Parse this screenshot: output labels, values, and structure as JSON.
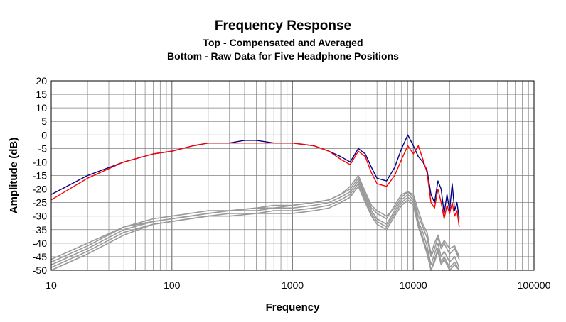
{
  "chart_data": {
    "type": "line",
    "title": "Frequency Response",
    "subtitle_lines": [
      "Top -  Compensated and Averaged",
      "Bottom - Raw Data for Five Headphone Positions"
    ],
    "xlabel": "Frequency",
    "ylabel": "Amplitude (dB)",
    "x_scale": "log",
    "xlim": [
      10,
      100000
    ],
    "ylim": [
      -50,
      20
    ],
    "x_ticks": [
      "10",
      "100",
      "1000",
      "10000",
      "100000"
    ],
    "y_ticks": [
      "20",
      "15",
      "10",
      "5",
      "0",
      "-5",
      "-10",
      "-15",
      "-20",
      "-25",
      "-30",
      "-35",
      "-40",
      "-45",
      "-50"
    ],
    "grid": true,
    "series": [
      {
        "color": "#000080",
        "group": "compensated",
        "x": [
          10,
          20,
          40,
          70,
          100,
          150,
          200,
          300,
          400,
          500,
          700,
          1000,
          1500,
          2000,
          2500,
          3000,
          3500,
          4000,
          4500,
          5000,
          6000,
          7000,
          8000,
          9000,
          10000,
          11000,
          12000,
          13000,
          14000,
          15000,
          16000,
          17000,
          18000,
          19000,
          20000,
          21000,
          22000,
          23000,
          24000
        ],
        "y": [
          -22,
          -15,
          -10,
          -7,
          -6,
          -4,
          -3,
          -3,
          -2,
          -2,
          -3,
          -3,
          -4,
          -6,
          -8,
          -10,
          -5,
          -7,
          -12,
          -16,
          -17,
          -12,
          -5,
          0,
          -4,
          -8,
          -10,
          -13,
          -22,
          -25,
          -17,
          -20,
          -29,
          -22,
          -28,
          -18,
          -28,
          -25,
          -31
        ]
      },
      {
        "color": "#ff0000",
        "group": "compensated",
        "x": [
          10,
          20,
          40,
          70,
          100,
          150,
          200,
          300,
          400,
          500,
          700,
          1000,
          1500,
          2000,
          2500,
          3000,
          3500,
          4000,
          4500,
          5000,
          6000,
          7000,
          8000,
          9000,
          10000,
          11000,
          12000,
          13000,
          14000,
          15000,
          16000,
          17000,
          18000,
          19000,
          20000,
          21000,
          22000,
          23000,
          24000
        ],
        "y": [
          -24,
          -16,
          -10,
          -7,
          -6,
          -4,
          -3,
          -3,
          -3,
          -3,
          -3,
          -3,
          -4,
          -6,
          -9,
          -11,
          -6,
          -8,
          -14,
          -18,
          -19,
          -15,
          -9,
          -4,
          -7,
          -4,
          -9,
          -14,
          -25,
          -27,
          -20,
          -25,
          -31,
          -26,
          -29,
          -25,
          -30,
          -28,
          -34
        ]
      },
      {
        "color": "#999999",
        "group": "raw",
        "x": [
          10,
          20,
          40,
          70,
          100,
          200,
          300,
          500,
          700,
          1000,
          1500,
          2000,
          2500,
          3000,
          3500,
          4000,
          4500,
          5000,
          6000,
          7000,
          8000,
          9000,
          10000,
          11000,
          12000,
          13000,
          14000,
          15000,
          16000,
          17000,
          18000,
          20000,
          22000,
          24000
        ],
        "y": [
          -47,
          -41,
          -34,
          -31,
          -30,
          -28,
          -28,
          -27,
          -26,
          -26,
          -25,
          -24,
          -22,
          -20,
          -16,
          -22,
          -27,
          -29,
          -31,
          -26,
          -22,
          -21,
          -23,
          -30,
          -34,
          -38,
          -45,
          -42,
          -38,
          -42,
          -40,
          -44,
          -42,
          -46
        ]
      },
      {
        "color": "#999999",
        "group": "raw",
        "x": [
          10,
          20,
          40,
          70,
          100,
          200,
          300,
          500,
          700,
          1000,
          1500,
          2000,
          2500,
          3000,
          3500,
          4000,
          4500,
          5000,
          6000,
          7000,
          8000,
          9000,
          10000,
          11000,
          12000,
          13000,
          14000,
          15000,
          16000,
          17000,
          18000,
          20000,
          22000,
          24000
        ],
        "y": [
          -48,
          -42,
          -35,
          -32,
          -31,
          -29,
          -28,
          -28,
          -27,
          -27,
          -26,
          -25,
          -23,
          -21,
          -17,
          -23,
          -28,
          -31,
          -33,
          -28,
          -24,
          -22,
          -24,
          -32,
          -36,
          -41,
          -48,
          -44,
          -40,
          -45,
          -43,
          -47,
          -45,
          -49
        ]
      },
      {
        "color": "#999999",
        "group": "raw",
        "x": [
          10,
          20,
          40,
          70,
          100,
          200,
          300,
          500,
          700,
          1000,
          1500,
          2000,
          2500,
          3000,
          3500,
          4000,
          4500,
          5000,
          6000,
          7000,
          8000,
          9000,
          10000,
          11000,
          12000,
          13000,
          14000,
          15000,
          16000,
          17000,
          18000,
          20000,
          22000,
          24000
        ],
        "y": [
          -49,
          -43,
          -36,
          -33,
          -32,
          -30,
          -29,
          -29,
          -28,
          -28,
          -27,
          -26,
          -24,
          -22,
          -18,
          -24,
          -29,
          -32,
          -34,
          -29,
          -25,
          -23,
          -25,
          -33,
          -38,
          -43,
          -50,
          -46,
          -42,
          -47,
          -45,
          -49,
          -47,
          -50
        ]
      },
      {
        "color": "#999999",
        "group": "raw",
        "x": [
          10,
          20,
          40,
          70,
          100,
          200,
          300,
          500,
          700,
          1000,
          1500,
          2000,
          2500,
          3000,
          3500,
          4000,
          4500,
          5000,
          6000,
          7000,
          8000,
          9000,
          10000,
          11000,
          12000,
          13000,
          14000,
          15000,
          16000,
          17000,
          18000,
          20000,
          22000,
          24000
        ],
        "y": [
          -46,
          -40,
          -34,
          -32,
          -31,
          -29,
          -28,
          -27,
          -27,
          -26,
          -25,
          -24,
          -22,
          -19,
          -15,
          -21,
          -26,
          -28,
          -30,
          -27,
          -23,
          -21,
          -22,
          -28,
          -33,
          -36,
          -44,
          -40,
          -37,
          -41,
          -39,
          -42,
          -41,
          -45
        ]
      },
      {
        "color": "#999999",
        "group": "raw",
        "x": [
          10,
          20,
          40,
          70,
          100,
          200,
          300,
          500,
          700,
          1000,
          1500,
          2000,
          2500,
          3000,
          3500,
          4000,
          4500,
          5000,
          6000,
          7000,
          8000,
          9000,
          10000,
          11000,
          12000,
          13000,
          14000,
          15000,
          16000,
          17000,
          18000,
          20000,
          22000,
          24000
        ],
        "y": [
          -50,
          -44,
          -37,
          -33,
          -32,
          -30,
          -30,
          -29,
          -29,
          -29,
          -28,
          -27,
          -25,
          -23,
          -19,
          -25,
          -30,
          -33,
          -35,
          -30,
          -26,
          -24,
          -26,
          -34,
          -39,
          -44,
          -50,
          -47,
          -43,
          -48,
          -46,
          -50,
          -48,
          -50
        ]
      }
    ]
  }
}
